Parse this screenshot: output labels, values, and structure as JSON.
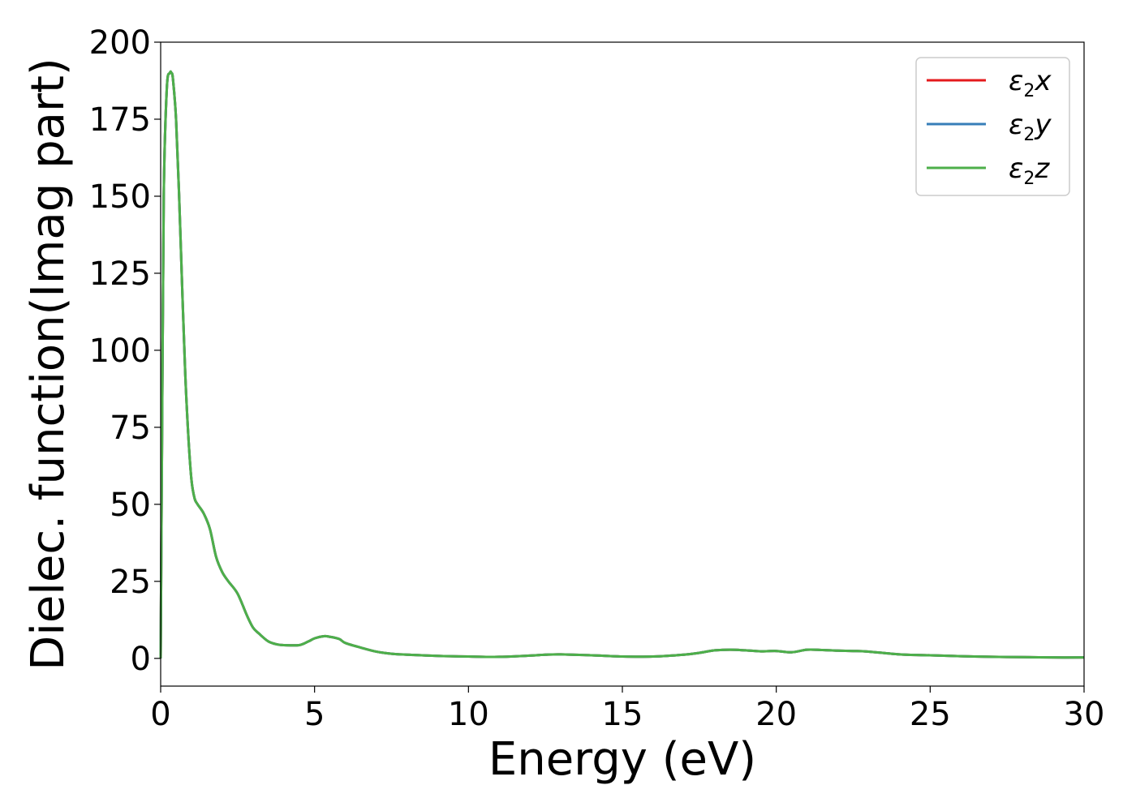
{
  "chart_data": {
    "type": "line",
    "xlabel": "Energy (eV)",
    "ylabel": "Dielec. function(Imag part)",
    "xlim": [
      0,
      30
    ],
    "ylim": [
      -9,
      200
    ],
    "xticks": [
      0,
      5,
      10,
      15,
      20,
      25,
      30
    ],
    "yticks": [
      0,
      25,
      50,
      75,
      100,
      125,
      150,
      175,
      200
    ],
    "xtick_labels": [
      "0",
      "5",
      "10",
      "15",
      "20",
      "25",
      "30"
    ],
    "ytick_labels": [
      "0",
      "25",
      "50",
      "75",
      "100",
      "125",
      "150",
      "175",
      "200"
    ],
    "grid": false,
    "legend_position": "top-right",
    "x": [
      0,
      0.05,
      0.1,
      0.2,
      0.3,
      0.35,
      0.4,
      0.5,
      0.6,
      0.7,
      0.8,
      0.9,
      1.0,
      1.1,
      1.2,
      1.4,
      1.6,
      1.8,
      2.0,
      2.2,
      2.5,
      2.8,
      3.0,
      3.2,
      3.5,
      3.8,
      4.0,
      4.5,
      4.8,
      5.0,
      5.3,
      5.5,
      5.8,
      6.0,
      6.5,
      7.0,
      7.5,
      8.0,
      9.0,
      10.0,
      11.0,
      12.0,
      12.5,
      13.0,
      14.0,
      15.0,
      16.0,
      17.0,
      17.5,
      18.0,
      18.5,
      19.0,
      19.5,
      20.0,
      20.5,
      21.0,
      21.5,
      22.0,
      22.5,
      23.0,
      24.0,
      25.0,
      26.0,
      27.0,
      28.0,
      29.0,
      30.0
    ],
    "series": [
      {
        "name": "ε₂x",
        "legend_base": "ε",
        "legend_sub": "2",
        "legend_suffix": "x",
        "color": "#e41a1c",
        "values": [
          0,
          80,
          150,
          185,
          190,
          190,
          188,
          175,
          150,
          120,
          92,
          72,
          58,
          52,
          50,
          47,
          42,
          33,
          28,
          25,
          21,
          14,
          10,
          8,
          5.5,
          4.5,
          4.3,
          4.3,
          5.5,
          6.5,
          7.2,
          7.0,
          6.3,
          5.0,
          3.5,
          2.2,
          1.5,
          1.2,
          0.8,
          0.6,
          0.5,
          0.9,
          1.2,
          1.3,
          1.0,
          0.6,
          0.6,
          1.2,
          1.8,
          2.6,
          2.8,
          2.6,
          2.3,
          2.4,
          2.0,
          2.8,
          2.7,
          2.5,
          2.4,
          2.2,
          1.3,
          1.0,
          0.7,
          0.5,
          0.4,
          0.3,
          0.3
        ]
      },
      {
        "name": "ε₂y",
        "legend_base": "ε",
        "legend_sub": "2",
        "legend_suffix": "y",
        "color": "#377eb8",
        "values": [
          0,
          80,
          150,
          185,
          190,
          190,
          188,
          175,
          150,
          120,
          92,
          72,
          58,
          52,
          50,
          47,
          42,
          33,
          28,
          25,
          21,
          14,
          10,
          8,
          5.5,
          4.5,
          4.3,
          4.3,
          5.5,
          6.5,
          7.2,
          7.0,
          6.3,
          5.0,
          3.5,
          2.2,
          1.5,
          1.2,
          0.8,
          0.6,
          0.5,
          0.9,
          1.2,
          1.3,
          1.0,
          0.6,
          0.6,
          1.2,
          1.8,
          2.6,
          2.8,
          2.6,
          2.3,
          2.4,
          2.0,
          2.8,
          2.7,
          2.5,
          2.4,
          2.2,
          1.3,
          1.0,
          0.7,
          0.5,
          0.4,
          0.3,
          0.3
        ]
      },
      {
        "name": "ε₂z",
        "legend_base": "ε",
        "legend_sub": "2",
        "legend_suffix": "z",
        "color": "#4daf4a",
        "values": [
          0,
          80,
          150,
          185,
          190,
          190,
          188,
          175,
          150,
          120,
          92,
          72,
          58,
          52,
          50,
          47,
          42,
          33,
          28,
          25,
          21,
          14,
          10,
          8,
          5.5,
          4.5,
          4.3,
          4.3,
          5.5,
          6.5,
          7.2,
          7.0,
          6.3,
          5.0,
          3.5,
          2.2,
          1.5,
          1.2,
          0.8,
          0.6,
          0.5,
          0.9,
          1.2,
          1.3,
          1.0,
          0.6,
          0.6,
          1.2,
          1.8,
          2.6,
          2.8,
          2.6,
          2.3,
          2.4,
          2.0,
          2.8,
          2.7,
          2.5,
          2.4,
          2.2,
          1.3,
          1.0,
          0.7,
          0.5,
          0.4,
          0.3,
          0.3
        ]
      }
    ]
  }
}
